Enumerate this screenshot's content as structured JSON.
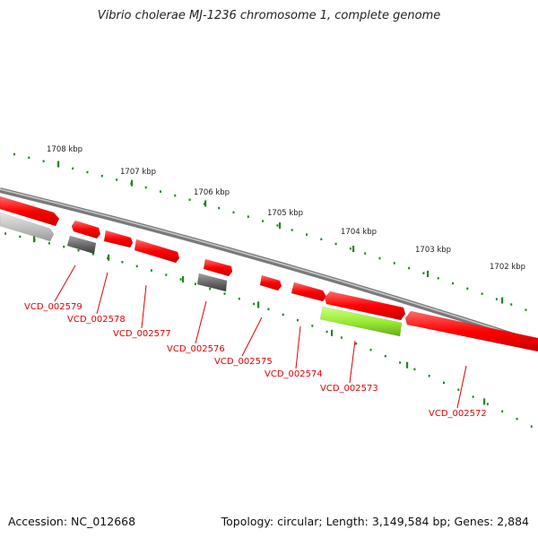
{
  "title": "Vibrio cholerae MJ-1236 chromosome 1, complete genome",
  "footer": {
    "accession": "Accession: NC_012668",
    "summary": "Topology: circular; Length: 3,149,584 bp; Genes: 2,884"
  },
  "colors": {
    "forward_gene": "#ff1a1a",
    "reverse_pseudo": "#6b6b6b",
    "reverse_light": "#c8c8c8",
    "highlight_gene": "#99ee33",
    "tick": "#1a8a1a",
    "label": "#e00000"
  },
  "ticks_outer": [
    {
      "label": "1708 kbp"
    },
    {
      "label": "1707 kbp"
    },
    {
      "label": "1706 kbp"
    },
    {
      "label": "1705 kbp"
    },
    {
      "label": "1704 kbp"
    },
    {
      "label": "1703 kbp"
    },
    {
      "label": "1702 kbp"
    }
  ],
  "genes": [
    {
      "label": "VCD_002579"
    },
    {
      "label": "VCD_002578"
    },
    {
      "label": "VCD_002577"
    },
    {
      "label": "VCD_002576"
    },
    {
      "label": "VCD_002575"
    },
    {
      "label": "VCD_002574"
    },
    {
      "label": "VCD_002573"
    },
    {
      "label": "VCD_002572"
    }
  ]
}
